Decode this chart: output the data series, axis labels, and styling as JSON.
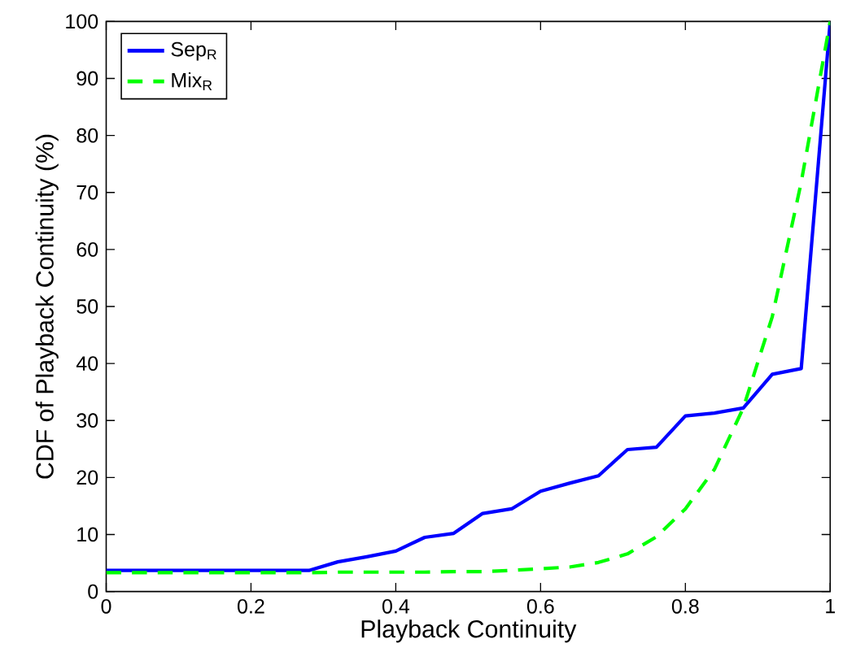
{
  "chart_data": {
    "type": "line",
    "xlabel": "Playback Continuity",
    "ylabel": "CDF of Playback Continuity (%)",
    "x": [
      0,
      0.04,
      0.08,
      0.12,
      0.16,
      0.2,
      0.24,
      0.28,
      0.32,
      0.36,
      0.4,
      0.44,
      0.48,
      0.52,
      0.56,
      0.6,
      0.64,
      0.68,
      0.72,
      0.76,
      0.8,
      0.84,
      0.88,
      0.92,
      0.96,
      1
    ],
    "series": [
      {
        "name": "Sep$_{R}$",
        "color": "#0000ff",
        "line_style": "solid",
        "values": [
          3.7,
          3.7,
          3.7,
          3.7,
          3.7,
          3.7,
          3.7,
          3.7,
          5.2,
          6.1,
          7.1,
          9.5,
          10.2,
          13.7,
          14.5,
          17.6,
          19.0,
          20.3,
          24.9,
          25.3,
          30.8,
          31.3,
          32.2,
          38.1,
          39.1,
          100
        ]
      },
      {
        "name": "Mix$_{R}$",
        "color": "#00ff00",
        "line_style": "dashed",
        "values": [
          3.3,
          3.3,
          3.3,
          3.3,
          3.3,
          3.3,
          3.3,
          3.3,
          3.4,
          3.4,
          3.4,
          3.4,
          3.5,
          3.5,
          3.7,
          4.0,
          4.3,
          5.1,
          6.6,
          9.6,
          14.5,
          21.4,
          32.2,
          48.2,
          71.8,
          100
        ]
      }
    ],
    "xlim": [
      0,
      1
    ],
    "ylim": [
      0,
      100
    ],
    "xticks": [
      0,
      0.2,
      0.4,
      0.6,
      0.8,
      1
    ],
    "yticks": [
      0,
      10,
      20,
      30,
      40,
      50,
      60,
      70,
      80,
      90,
      100
    ],
    "grid": false,
    "legend": "top left",
    "marker": "none"
  }
}
